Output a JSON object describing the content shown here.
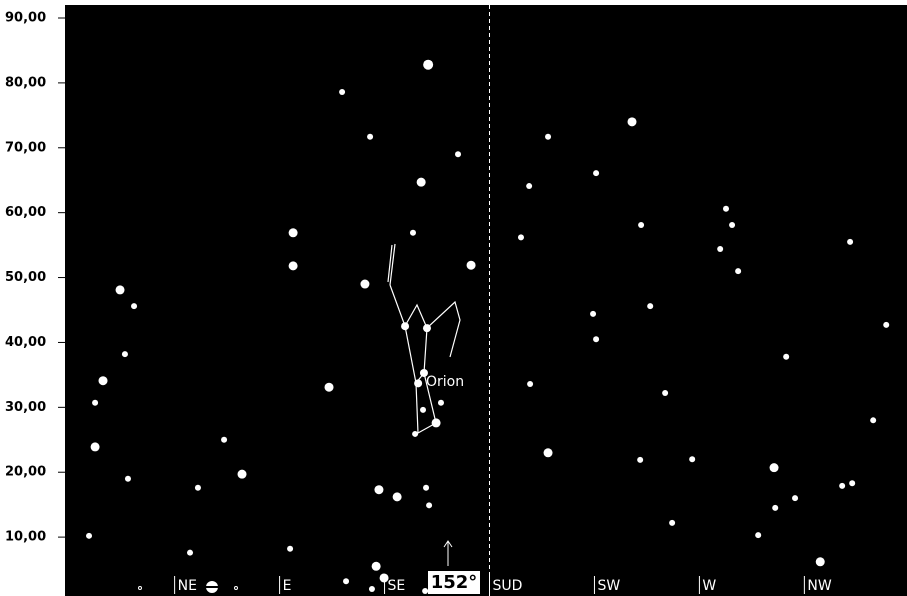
{
  "chart_data": {
    "type": "scatter",
    "annotation": "Orion",
    "azimuth_readout": "152°",
    "xlim": [
      -2,
      359
    ],
    "ylim": [
      0,
      90
    ],
    "xticks": [
      {
        "value": 45,
        "label": "NE"
      },
      {
        "value": 90,
        "label": "E"
      },
      {
        "value": 135,
        "label": "SE"
      },
      {
        "value": 180,
        "label": "SUD"
      },
      {
        "value": 225,
        "label": "SW"
      },
      {
        "value": 270,
        "label": "W"
      },
      {
        "value": 315,
        "label": "NW"
      }
    ],
    "yticks": [
      {
        "value": 10,
        "label": "10,00"
      },
      {
        "value": 20,
        "label": "20,00"
      },
      {
        "value": 30,
        "label": "30,00"
      },
      {
        "value": 40,
        "label": "40,00"
      },
      {
        "value": 50,
        "label": "50,00"
      },
      {
        "value": 60,
        "label": "60,00"
      },
      {
        "value": 70,
        "label": "70,00"
      },
      {
        "value": 80,
        "label": "80,00"
      },
      {
        "value": 90,
        "label": "90,00"
      }
    ],
    "meridian": 180,
    "series": [
      {
        "color": "#ffffff",
        "x": [
          153.7,
          116.8,
          128.8,
          166.5,
          150.7,
          147.2,
          95.8,
          95.8,
          172.1,
          126.6,
          21.6,
          27.6,
          143.8,
          153.2,
          23.7,
          151.9,
          149.4,
          14.3,
          111.2,
          10.9,
          159.2,
          151.5,
          157.1,
          148.1,
          66.2,
          10.9,
          73.9,
          25.0,
          55.0,
          132.6,
          140.4,
          152.8,
          154.1,
          8.3,
          51.6,
          94.5,
          131.4,
          134.8,
          118.5,
          129.6,
          152.4,
          205.1,
          241.1,
          197.0,
          225.7,
          193.5,
          245.0,
          281.4,
          284.0,
          278.9,
          286.6,
          334.6,
          224.4,
          248.9,
          225.7,
          350.1,
          307.2,
          197.4,
          255.3,
          344.5,
          205.1,
          244.6,
          266.9,
          302.0,
          335.5,
          331.2,
          311.0,
          302.5,
          258.3,
          295.2,
          321.8
        ],
        "values": [
          82.8,
          78.6,
          71.7,
          69.0,
          64.7,
          56.9,
          56.9,
          51.8,
          51.9,
          49.0,
          48.1,
          45.6,
          42.5,
          42.2,
          38.2,
          35.3,
          33.7,
          34.1,
          33.1,
          30.7,
          30.7,
          29.6,
          27.6,
          25.9,
          25.0,
          23.9,
          19.7,
          19.0,
          17.6,
          17.3,
          16.2,
          17.6,
          14.9,
          10.2,
          7.6,
          8.2,
          5.5,
          3.7,
          3.2,
          2.0,
          1.7,
          71.7,
          74.0,
          64.1,
          66.1,
          56.2,
          58.1,
          60.6,
          58.1,
          54.4,
          51.0,
          55.5,
          44.4,
          45.6,
          40.5,
          42.7,
          37.8,
          33.6,
          32.2,
          28.0,
          23.0,
          21.9,
          22.0,
          20.7,
          18.3,
          17.9,
          16.0,
          14.5,
          12.2,
          10.3,
          6.2
        ],
        "sizes": [
          5,
          3,
          3,
          3,
          4.5,
          3,
          4.5,
          4.5,
          4.5,
          4.5,
          4.5,
          3,
          4,
          4,
          3,
          4,
          4,
          4.5,
          4.5,
          3,
          3,
          3,
          4.5,
          3,
          3,
          4.5,
          4.5,
          3,
          3,
          4.5,
          4.5,
          3,
          3,
          3,
          3,
          3,
          4.5,
          4.5,
          3,
          3,
          3,
          3,
          4.5,
          3,
          3,
          3,
          3,
          3,
          3,
          3,
          3,
          3,
          3,
          3,
          3,
          3,
          3,
          3,
          3,
          3,
          4.5,
          3,
          3,
          4.5,
          3,
          3,
          3,
          3,
          3,
          3,
          4.5
        ]
      }
    ]
  }
}
